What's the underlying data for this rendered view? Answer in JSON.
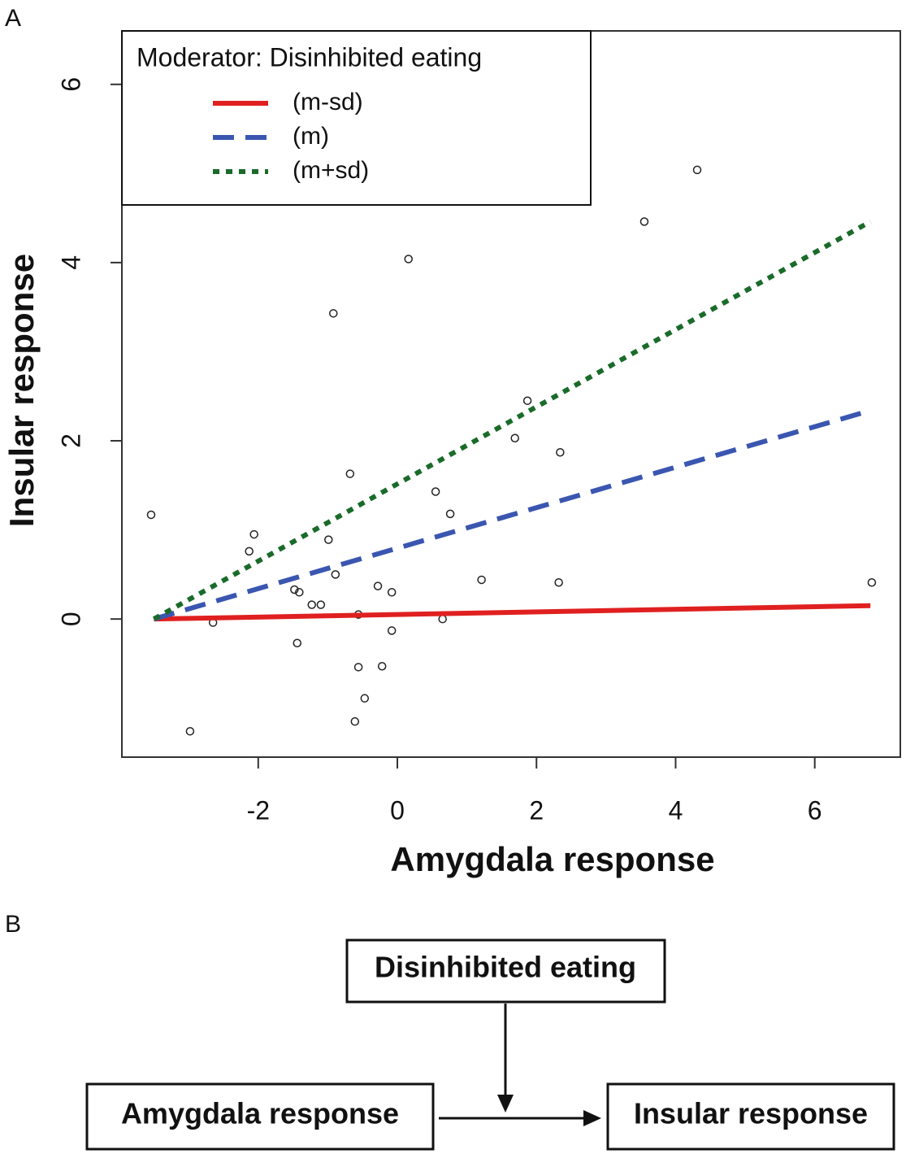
{
  "panels": [
    "A",
    "B"
  ],
  "chart_data": {
    "type": "scatter",
    "xlabel": "Amygdala response",
    "ylabel": "Insular response",
    "xlim": [
      -3.96,
      7.23
    ],
    "ylim": [
      -1.55,
      6.6
    ],
    "xticks": [
      -2,
      0,
      2,
      4,
      6
    ],
    "yticks": [
      0,
      2,
      4,
      6
    ],
    "point_color": "#222222",
    "x": [
      -3.54,
      -2.98,
      -2.65,
      -2.13,
      -2.06,
      -1.48,
      -1.41,
      -1.44,
      -1.23,
      -1.1,
      -0.99,
      -0.92,
      -0.89,
      -0.68,
      -0.61,
      -0.56,
      -0.56,
      -0.47,
      -0.28,
      -0.22,
      -0.08,
      -0.08,
      0.16,
      0.55,
      0.65,
      0.76,
      1.21,
      1.69,
      1.87,
      2.34,
      2.32,
      3.55,
      4.31,
      6.82
    ],
    "y": [
      1.17,
      -1.26,
      -0.04,
      0.76,
      0.95,
      0.33,
      0.3,
      -0.27,
      0.16,
      0.16,
      0.89,
      3.43,
      0.5,
      1.63,
      -1.15,
      -0.54,
      0.05,
      -0.89,
      0.37,
      -0.53,
      0.3,
      -0.13,
      4.04,
      1.43,
      0.0,
      1.18,
      0.44,
      2.03,
      2.45,
      1.87,
      0.41,
      4.46,
      5.04,
      0.41
    ],
    "legend_title": "Moderator: Disinhibited eating",
    "legend": "upper left",
    "series": [
      {
        "name": "(m-sd)",
        "color": "#e02020",
        "dash": "solid",
        "x": [
          -3.5,
          6.8
        ],
        "values": [
          0,
          0.15
        ]
      },
      {
        "name": "(m)",
        "color": "#3a56b0",
        "dash": "dashed",
        "x": [
          -3.5,
          6.8
        ],
        "values": [
          0,
          2.34
        ]
      },
      {
        "name": "(m+sd)",
        "color": "#1a6b2a",
        "dash": "dotted",
        "x": [
          -3.5,
          6.8
        ],
        "values": [
          0,
          4.46
        ]
      }
    ]
  },
  "diagram": {
    "nodes": [
      {
        "label": "Disinhibited eating"
      },
      {
        "label": "Amygdala response"
      },
      {
        "label": "Insular response"
      }
    ]
  }
}
